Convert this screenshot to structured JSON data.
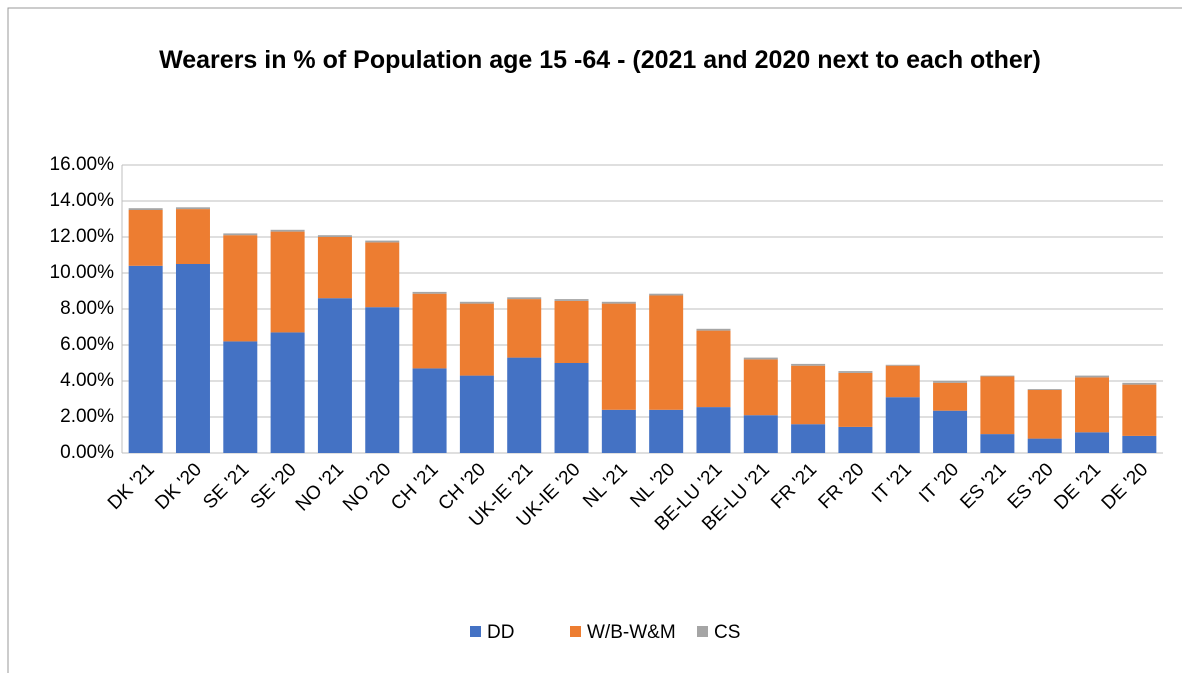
{
  "chart_data": {
    "type": "stacked_bar",
    "title": "Wearers in % of Population age 15 -64 - (2021 and 2020 next to each other)",
    "categories": [
      "DK '21",
      "DK '20",
      "SE '21",
      "SE '20",
      "NO '21",
      "NO '20",
      "CH '21",
      "CH '20",
      "UK-IE '21",
      "UK-IE '20",
      "NL '21",
      "NL '20",
      "BE-LU '21",
      "BE-LU '21",
      "FR '21",
      "FR '20",
      "IT '21",
      "IT '20",
      "ES '21",
      "ES '20",
      "DE '21",
      "DE '20"
    ],
    "series": [
      {
        "name": "DD",
        "color": "#4472c4",
        "values": [
          10.4,
          10.5,
          6.2,
          6.7,
          8.6,
          8.1,
          4.7,
          4.3,
          5.3,
          5.0,
          2.4,
          2.4,
          2.55,
          2.1,
          1.6,
          1.45,
          3.1,
          2.35,
          1.05,
          0.8,
          1.15,
          0.95
        ]
      },
      {
        "name": "W/B-W&M",
        "color": "#ed7d31",
        "values": [
          3.1,
          3.05,
          5.9,
          5.6,
          3.4,
          3.6,
          4.15,
          4.0,
          3.25,
          3.45,
          5.9,
          6.35,
          4.25,
          3.1,
          3.25,
          3.0,
          1.75,
          1.55,
          3.2,
          2.7,
          3.05,
          2.85
        ]
      },
      {
        "name": "CS",
        "color": "#a5a5a5",
        "values": [
          0.1,
          0.1,
          0.1,
          0.1,
          0.1,
          0.1,
          0.1,
          0.1,
          0.1,
          0.1,
          0.1,
          0.1,
          0.1,
          0.1,
          0.1,
          0.1,
          0.05,
          0.1,
          0.05,
          0.05,
          0.1,
          0.1
        ]
      }
    ],
    "ylim": [
      0,
      16
    ],
    "yticks": [
      {
        "value": 0,
        "label": "0.00%"
      },
      {
        "value": 2,
        "label": "2.00%"
      },
      {
        "value": 4,
        "label": "4.00%"
      },
      {
        "value": 6,
        "label": "6.00%"
      },
      {
        "value": 8,
        "label": "8.00%"
      },
      {
        "value": 10,
        "label": "10.00%"
      },
      {
        "value": 12,
        "label": "12.00%"
      },
      {
        "value": 14,
        "label": "14.00%"
      },
      {
        "value": 16,
        "label": "16.00%"
      }
    ],
    "grid": true,
    "legend": "bottom"
  }
}
